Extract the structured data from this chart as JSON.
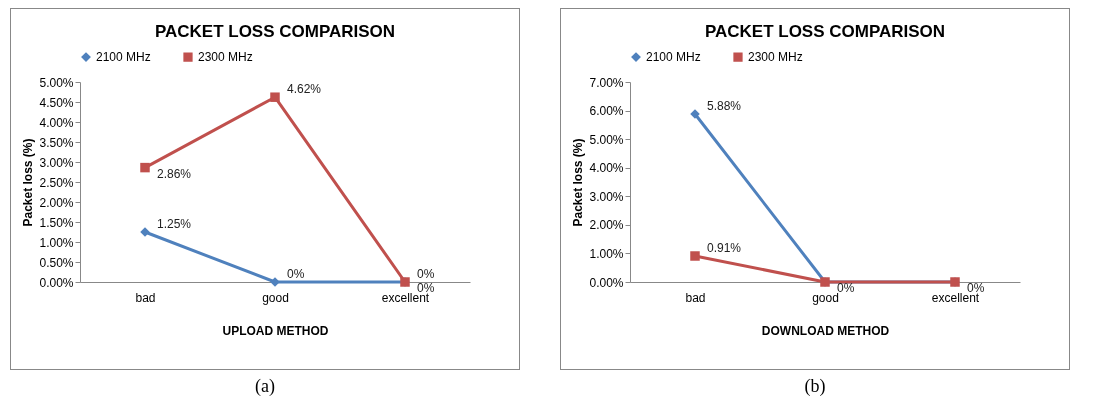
{
  "chart_data": [
    {
      "type": "line",
      "title": "PACKET LOSS COMPARISON",
      "xlabel": "UPLOAD METHOD",
      "ylabel": "Packet loss (%)",
      "categories": [
        "bad",
        "good",
        "excellent"
      ],
      "series": [
        {
          "name": "2100 MHz",
          "color": "#4f81bd",
          "marker": "diamond",
          "values": [
            1.25,
            0,
            0
          ],
          "value_labels": [
            "1.25%",
            "0%",
            "0%"
          ]
        },
        {
          "name": "2300 MHz",
          "color": "#c0504d",
          "marker": "square",
          "values": [
            2.86,
            4.62,
            0
          ],
          "value_labels": [
            "2.86%",
            "4.62%",
            "0%"
          ]
        }
      ],
      "ylim": [
        0,
        5
      ],
      "yticks": [
        {
          "value": 0,
          "label": "0.00%"
        },
        {
          "value": 0.5,
          "label": "0.50%"
        },
        {
          "value": 1,
          "label": "1.00%"
        },
        {
          "value": 1.5,
          "label": "1.50%"
        },
        {
          "value": 2,
          "label": "2.00%"
        },
        {
          "value": 2.5,
          "label": "2.50%"
        },
        {
          "value": 3,
          "label": "3.00%"
        },
        {
          "value": 3.5,
          "label": "3.50%"
        },
        {
          "value": 4,
          "label": "4.00%"
        },
        {
          "value": 4.5,
          "label": "4.50%"
        },
        {
          "value": 5,
          "label": "5.00%"
        }
      ],
      "grid": false,
      "legend": "top",
      "annotations": [
        "(a)"
      ]
    },
    {
      "type": "line",
      "title": "PACKET LOSS COMPARISON",
      "xlabel": "DOWNLOAD METHOD",
      "ylabel": "Packet loss (%)",
      "categories": [
        "bad",
        "good",
        "excellent"
      ],
      "series": [
        {
          "name": "2100 MHz",
          "color": "#4f81bd",
          "marker": "diamond",
          "values": [
            5.88,
            0,
            0
          ],
          "value_labels": [
            "5.88%",
            null,
            null
          ]
        },
        {
          "name": "2300 MHz",
          "color": "#c0504d",
          "marker": "square",
          "values": [
            0.91,
            0,
            0
          ],
          "value_labels": [
            "0.91%",
            "0%",
            "0%"
          ]
        }
      ],
      "ylim": [
        0,
        7
      ],
      "yticks": [
        {
          "value": 0,
          "label": "0.00%"
        },
        {
          "value": 1,
          "label": "1.00%"
        },
        {
          "value": 2,
          "label": "2.00%"
        },
        {
          "value": 3,
          "label": "3.00%"
        },
        {
          "value": 4,
          "label": "4.00%"
        },
        {
          "value": 5,
          "label": "5.00%"
        },
        {
          "value": 6,
          "label": "6.00%"
        },
        {
          "value": 7,
          "label": "7.00%"
        }
      ],
      "grid": false,
      "legend": "top",
      "annotations": [
        "(b)"
      ]
    }
  ]
}
